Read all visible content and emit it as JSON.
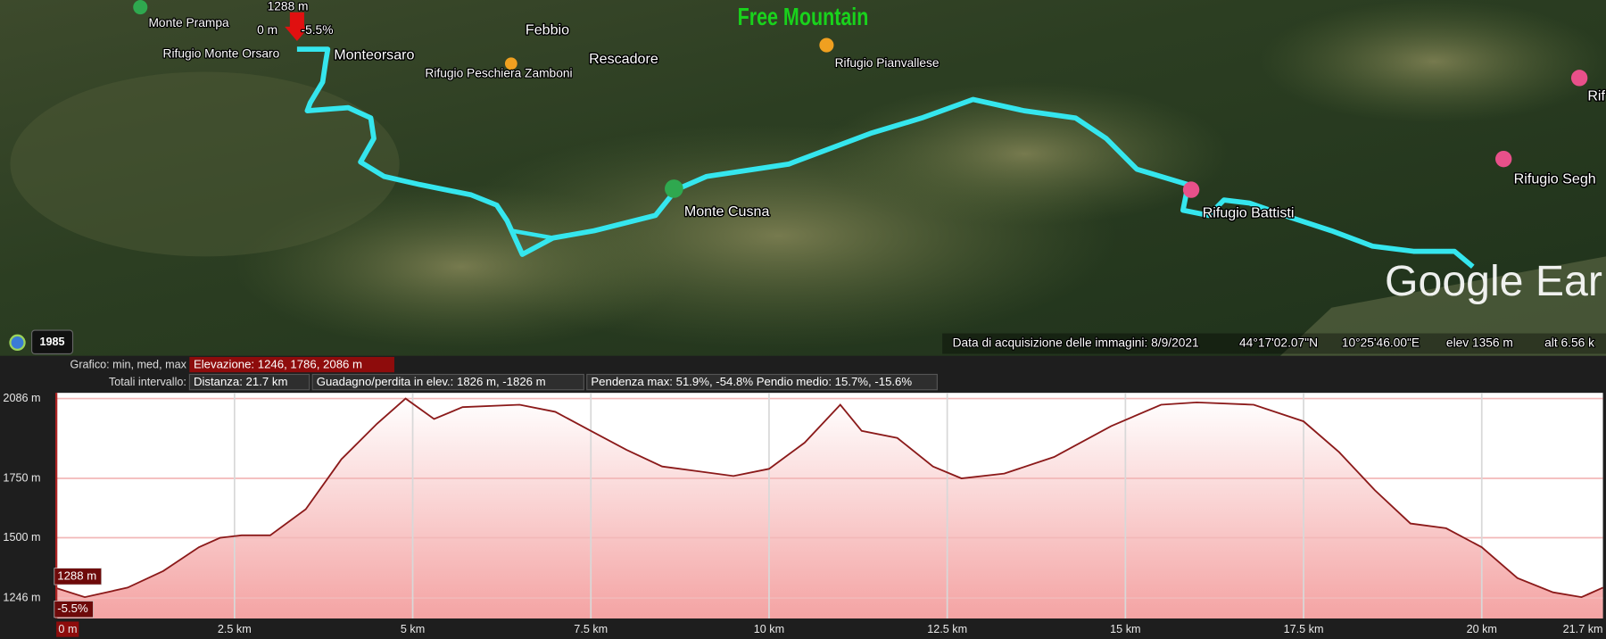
{
  "map": {
    "labels": [
      "Monte Prampa",
      "Rifugio Monte Orsaro",
      "Monteorsaro",
      "Febbio",
      "Rescadore",
      "Rifugio Peschiera Zamboni",
      "Rifugio Pianvallese",
      "Monte Cusna",
      "Rifugio Battisti",
      "Rifugio Segh",
      "Rif"
    ],
    "cursor_elevation": "1288 m",
    "cursor_distance": "0 m",
    "cursor_slope": "-5.5%",
    "watermark": "Free Mountain",
    "logo": "Google Ear",
    "year": "1985",
    "status": {
      "acquisition": "Data di acquisizione delle immagini: 8/9/2021",
      "lat": "44°17'02.07\"N",
      "lon": "10°25'46.00\"E",
      "elev": "elev  1356 m",
      "alt": "alt  6.56 k"
    }
  },
  "profile_header": {
    "chart_label": "Grafico: min, med, max",
    "elevation": "Elevazione: 1246, 1786, 2086 m",
    "totals_label": "Totali intervallo:",
    "distance": "Distanza: 21.7 km",
    "gain": "Guadagno/perdita in elev.: 1826 m, -1826 m",
    "slope": "Pendenza max: 51.9%, -54.8%  Pendio medio: 15.7%, -15.6%"
  },
  "cursor": {
    "elevation_label": "1288 m",
    "slope_label": "-5.5%"
  },
  "chart_data": {
    "type": "area",
    "x": [
      0,
      0.4,
      1.0,
      1.5,
      2.0,
      2.3,
      2.6,
      3.0,
      3.5,
      4.0,
      4.5,
      4.9,
      5.3,
      5.7,
      6.5,
      7.0,
      7.5,
      8.0,
      8.5,
      9.0,
      9.5,
      10.0,
      10.5,
      11.0,
      11.3,
      11.8,
      12.3,
      12.7,
      13.3,
      14.0,
      14.8,
      15.5,
      16.0,
      16.8,
      17.5,
      18.0,
      18.5,
      19.0,
      19.5,
      20.0,
      20.5,
      21.0,
      21.4,
      21.7
    ],
    "values": [
      1288,
      1250,
      1290,
      1360,
      1460,
      1500,
      1510,
      1510,
      1620,
      1830,
      1980,
      2086,
      2000,
      2050,
      2060,
      2030,
      1950,
      1870,
      1800,
      1780,
      1760,
      1790,
      1900,
      2060,
      1950,
      1920,
      1800,
      1750,
      1770,
      1840,
      1970,
      2060,
      2070,
      2060,
      1990,
      1860,
      1700,
      1560,
      1540,
      1460,
      1330,
      1270,
      1250,
      1290
    ],
    "color": "#8b1a1a",
    "fill": "#f4a3a3",
    "xlim": [
      0,
      21.7
    ],
    "xticks": [
      {
        "value": 0,
        "label": "0 m"
      },
      {
        "value": 2.5,
        "label": "2.5 km"
      },
      {
        "value": 5,
        "label": "5 km"
      },
      {
        "value": 7.5,
        "label": "7.5 km"
      },
      {
        "value": 10,
        "label": "10 km"
      },
      {
        "value": 12.5,
        "label": "12.5 km"
      },
      {
        "value": 15,
        "label": "15 km"
      },
      {
        "value": 17.5,
        "label": "17.5 km"
      },
      {
        "value": 20,
        "label": "20 km"
      },
      {
        "value": 21.7,
        "label": "21.7 km"
      }
    ],
    "ylim": [
      1160,
      2110
    ],
    "yticks": [
      {
        "value": 1246,
        "label": "1246 m"
      },
      {
        "value": 1500,
        "label": "1500 m"
      },
      {
        "value": 1750,
        "label": "1750 m"
      },
      {
        "value": 2086,
        "label": "2086 m"
      }
    ],
    "grid": true
  }
}
